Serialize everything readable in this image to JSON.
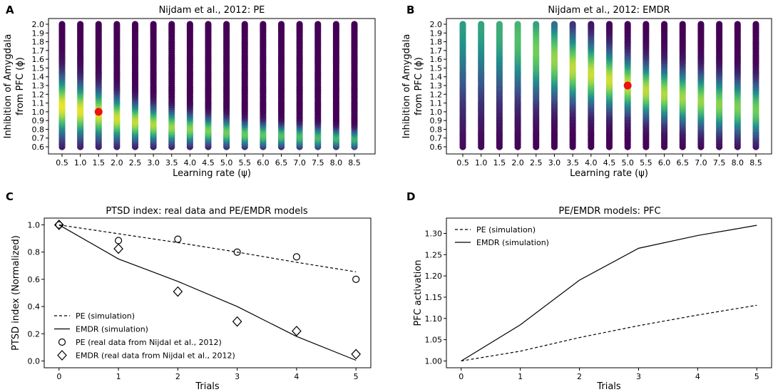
{
  "chart_data": [
    {
      "panel": "A",
      "type": "heatmap",
      "title": "Nijdam et al., 2012: PE",
      "xlabel": "Learning rate (ψ)",
      "ylabel_line1": "Inhibition of Amygdala",
      "ylabel_line2": "from PFC (ϕ)",
      "x_ticks": [
        "0.5",
        "1.0",
        "1.5",
        "2.0",
        "2.5",
        "3.0",
        "3.5",
        "4.0",
        "4.5",
        "5.0",
        "5.5",
        "6.0",
        "6.5",
        "7.0",
        "7.5",
        "8.0",
        "8.5"
      ],
      "y_ticks": [
        "0.6",
        "0.7",
        "0.8",
        "0.9",
        "1.0",
        "1.1",
        "1.2",
        "1.3",
        "1.4",
        "1.5",
        "1.6",
        "1.7",
        "1.8",
        "1.9",
        "2.0"
      ],
      "x": [
        0.5,
        1.0,
        1.5,
        2.0,
        2.5,
        3.0,
        3.5,
        4.0,
        4.5,
        5.0,
        5.5,
        6.0,
        6.5,
        7.0,
        7.5,
        8.0,
        8.5
      ],
      "xlim": [
        0.5,
        8.5
      ],
      "ylim": [
        0.6,
        2.0
      ],
      "peak_phi": [
        1.08,
        1.03,
        0.99,
        0.94,
        0.9,
        0.87,
        0.84,
        0.82,
        0.8,
        0.78,
        0.76,
        0.75,
        0.74,
        0.73,
        0.72,
        0.71,
        0.7
      ],
      "peak_width": [
        0.22,
        0.2,
        0.18,
        0.16,
        0.14,
        0.13,
        0.12,
        0.11,
        0.1,
        0.1,
        0.09,
        0.09,
        0.08,
        0.08,
        0.08,
        0.07,
        0.07
      ],
      "peak_height": [
        0.97,
        0.96,
        0.95,
        0.93,
        0.91,
        0.88,
        0.85,
        0.82,
        0.8,
        0.78,
        0.76,
        0.74,
        0.72,
        0.7,
        0.68,
        0.66,
        0.64
      ],
      "optimum": {
        "x": 1.5,
        "y": 1.0,
        "color": "#ee1111"
      }
    },
    {
      "panel": "B",
      "type": "heatmap",
      "title": "Nijdam et al., 2012: EMDR",
      "xlabel": "Learning rate (ψ)",
      "ylabel_line1": "Inhibition of Amygdala",
      "ylabel_line2": "from PFC (ϕ)",
      "x_ticks": [
        "0.5",
        "1.0",
        "1.5",
        "2.0",
        "2.5",
        "3.0",
        "3.5",
        "4.0",
        "4.5",
        "5.0",
        "5.5",
        "6.0",
        "6.5",
        "7.0",
        "7.5",
        "8.0",
        "8.5"
      ],
      "y_ticks": [
        "0.6",
        "0.7",
        "0.8",
        "0.9",
        "1.0",
        "1.1",
        "1.2",
        "1.3",
        "1.4",
        "1.5",
        "1.6",
        "1.7",
        "1.8",
        "1.9",
        "2.0"
      ],
      "x": [
        0.5,
        1.0,
        1.5,
        2.0,
        2.5,
        3.0,
        3.5,
        4.0,
        4.5,
        5.0,
        5.5,
        6.0,
        6.5,
        7.0,
        7.5,
        8.0,
        8.5
      ],
      "xlim": [
        0.5,
        8.5
      ],
      "ylim": [
        0.6,
        2.0
      ],
      "peak_phi": [
        2.05,
        2.02,
        1.95,
        1.85,
        1.72,
        1.62,
        1.52,
        1.45,
        1.38,
        1.32,
        1.26,
        1.22,
        1.18,
        1.14,
        1.1,
        1.07,
        1.04
      ],
      "peak_width": [
        0.6,
        0.55,
        0.5,
        0.42,
        0.36,
        0.3,
        0.26,
        0.24,
        0.22,
        0.2,
        0.2,
        0.2,
        0.2,
        0.2,
        0.2,
        0.2,
        0.2
      ],
      "peak_height": [
        0.55,
        0.58,
        0.62,
        0.7,
        0.78,
        0.84,
        0.9,
        0.92,
        0.93,
        0.92,
        0.9,
        0.88,
        0.86,
        0.84,
        0.82,
        0.8,
        0.78
      ],
      "optimum": {
        "x": 5.0,
        "y": 1.3,
        "color": "#ee1111"
      }
    },
    {
      "panel": "C",
      "type": "line",
      "title": "PTSD index: real data and PE/EMDR models",
      "xlabel": "Trials",
      "ylabel": "PTSD index (Normalized)",
      "x_ticks": [
        "0",
        "1",
        "2",
        "3",
        "4",
        "5"
      ],
      "y_ticks": [
        "0.0",
        "0.2",
        "0.4",
        "0.6",
        "0.8",
        "1.0"
      ],
      "xlim": [
        -0.25,
        5.25
      ],
      "ylim": [
        -0.05,
        1.05
      ],
      "x": [
        0,
        1,
        2,
        3,
        4,
        5
      ],
      "series": [
        {
          "name": "PE (simulation)",
          "style": "dashed",
          "values": [
            1.0,
            0.935,
            0.87,
            0.8,
            0.725,
            0.655
          ]
        },
        {
          "name": "EMDR (simulation)",
          "style": "solid",
          "values": [
            1.0,
            0.75,
            0.585,
            0.4,
            0.18,
            0.005
          ]
        },
        {
          "name": "PE (real data from Nijdal et al., 2012)",
          "style": "circle",
          "values": [
            1.0,
            0.885,
            0.895,
            0.8,
            0.765,
            0.6
          ]
        },
        {
          "name": "EMDR (real data from Nijdal et al., 2012)",
          "style": "diamond",
          "values": [
            1.0,
            0.825,
            0.51,
            0.29,
            0.22,
            0.05
          ]
        }
      ],
      "legend": "lower-left"
    },
    {
      "panel": "D",
      "type": "line",
      "title": "PE/EMDR models: PFC",
      "xlabel": "Trials",
      "ylabel": "PFC activation",
      "x_ticks": [
        "0",
        "1",
        "2",
        "3",
        "4",
        "5"
      ],
      "y_ticks": [
        "1.00",
        "1.05",
        "1.10",
        "1.15",
        "1.20",
        "1.25",
        "1.30"
      ],
      "xlim": [
        -0.25,
        5.25
      ],
      "ylim": [
        0.984,
        1.336
      ],
      "x": [
        0,
        1,
        2,
        3,
        4,
        5
      ],
      "series": [
        {
          "name": "PE (simulation)",
          "style": "dashed",
          "values": [
            1.0,
            1.023,
            1.055,
            1.083,
            1.108,
            1.131
          ]
        },
        {
          "name": "EMDR (simulation)",
          "style": "solid",
          "values": [
            1.0,
            1.085,
            1.19,
            1.265,
            1.295,
            1.319
          ]
        }
      ],
      "legend": "top-left"
    }
  ]
}
